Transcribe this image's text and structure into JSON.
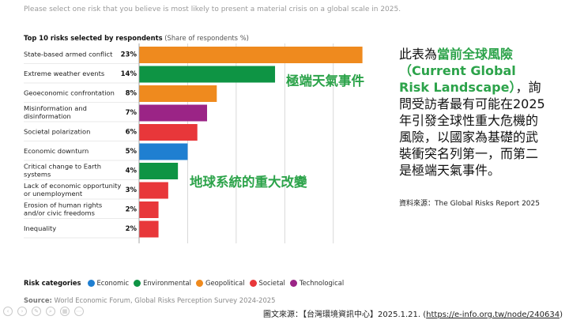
{
  "question": "Please select one risk that you believe is most likely to present a material crisis on a global scale in 2025.",
  "chart_title": {
    "bold": "Top 10 risks selected by respondents",
    "sub": "(Share of respondents %)"
  },
  "chart_data": {
    "type": "bar",
    "orientation": "horizontal",
    "categories": [
      [
        "State-based armed conflict"
      ],
      [
        "Extreme weather events"
      ],
      [
        "Geoeconomic confrontation"
      ],
      [
        "Misinformation and",
        "disinformation"
      ],
      [
        "Societal polarization"
      ],
      [
        "Economic downturn"
      ],
      [
        "Critical change to Earth",
        "systems"
      ],
      [
        "Lack of economic opportunity",
        "or unemployment"
      ],
      [
        "Erosion of human rights",
        "and/or civic freedoms"
      ],
      [
        "Inequality"
      ]
    ],
    "values": [
      23,
      14,
      8,
      7,
      6,
      5,
      4,
      3,
      2,
      2
    ],
    "value_labels": [
      "23%",
      "14%",
      "8%",
      "7%",
      "6%",
      "5%",
      "4%",
      "3%",
      "2%",
      "2%"
    ],
    "bar_categories": [
      "Geopolitical",
      "Environmental",
      "Geopolitical",
      "Technological",
      "Societal",
      "Economic",
      "Environmental",
      "Societal",
      "Societal",
      "Societal"
    ],
    "xlim": [
      0,
      23.6
    ],
    "gridlines": [
      0,
      5,
      10,
      15,
      20
    ],
    "grid": true
  },
  "legend": {
    "title": "Risk categories",
    "items": [
      {
        "name": "Economic",
        "color": "#1f7fd1"
      },
      {
        "name": "Environmental",
        "color": "#0e9444"
      },
      {
        "name": "Geopolitical",
        "color": "#ef8a1e"
      },
      {
        "name": "Societal",
        "color": "#e8373a"
      },
      {
        "name": "Technological",
        "color": "#9b2486"
      }
    ]
  },
  "source": {
    "label": "Source:",
    "text": "World Economic Forum, Global Risks Perception Survey 2024-2025"
  },
  "annotations": {
    "weather": "極端天氣事件",
    "earth": "地球系統的重大改變"
  },
  "description": {
    "prefix": "此表為",
    "highlight": "當前全球風險（Current Global Risk Landscape）",
    "suffix": "，詢問受訪者最有可能在2025年引發全球性重大危機的風險，以國家為基礎的武裝衝突名列第一，而第二是極端天氣事件。"
  },
  "description_source": "資料來源：The Global Risks Report 2025",
  "credit": {
    "text": "圖文來源：【台灣環境資訊中心】2025.1.21. (",
    "link": "https://e-info.org.tw/node/240634",
    "close": ")"
  }
}
